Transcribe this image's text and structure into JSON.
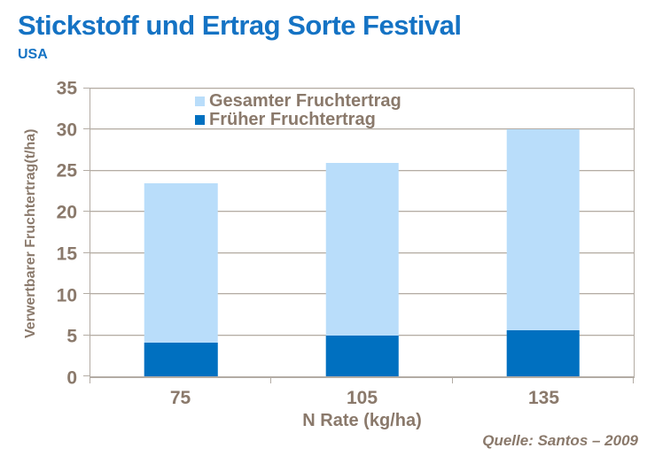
{
  "header": {
    "title": "Stickstoff und Ertrag Sorte Festival",
    "subtitle": "USA"
  },
  "footer": {
    "source": "Quelle: Santos – 2009"
  },
  "colors": {
    "title_blue": "#1573C4",
    "axis_text_brown": "#8A796B",
    "gridline_gray": "#B3ACA4",
    "series_dark_blue": "#0070C0",
    "series_light_blue": "#B9DDFA"
  },
  "chart_data": {
    "type": "bar",
    "style": "overlay-stacked",
    "title": "Stickstoff und Ertrag Sorte Festival",
    "subtitle": "USA",
    "categories": [
      "75",
      "105",
      "135"
    ],
    "series": [
      {
        "name": "Gesamter Fruchtertrag",
        "color": "#B9DDFA",
        "values": [
          23.5,
          26,
          30
        ]
      },
      {
        "name": "Früher Fruchtertrag",
        "color": "#0070C0",
        "values": [
          4.1,
          5,
          5.6
        ]
      }
    ],
    "xlabel": "N Rate (kg/ha)",
    "ylabel": "Verwertbarer Fruchtertrag(t/ha)",
    "ylim": [
      0,
      35
    ],
    "yticks": [
      0,
      5,
      10,
      15,
      20,
      25,
      30,
      35
    ],
    "grid": true,
    "legend_position": "top-inside",
    "bar_width_fraction": 0.404
  }
}
